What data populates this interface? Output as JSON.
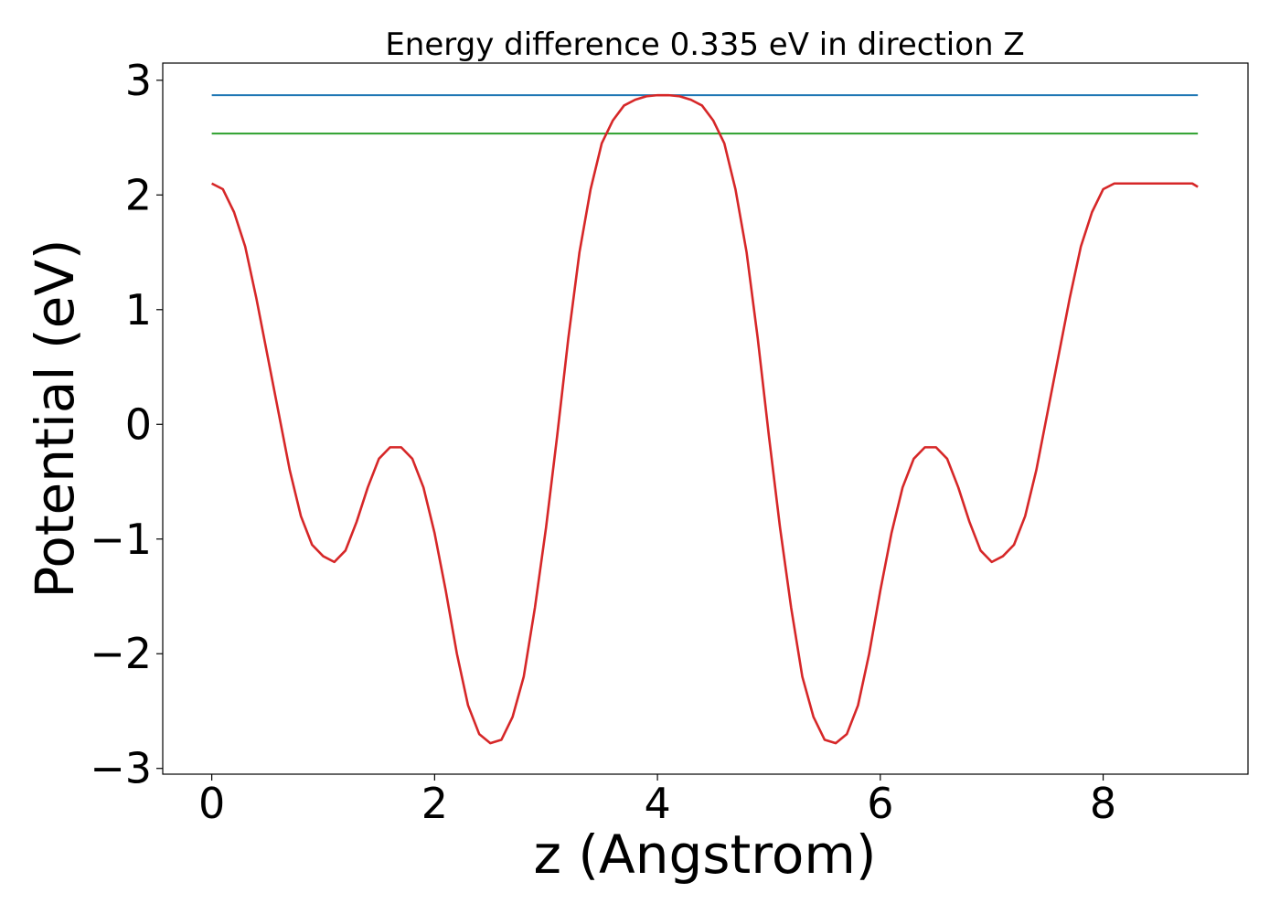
{
  "chart_data": {
    "type": "line",
    "title": "Energy difference 0.335 eV in direction Z",
    "xlabel": "z (Angstrom)",
    "ylabel": "Potential (eV)",
    "xlim": [
      -0.44,
      9.3
    ],
    "ylim": [
      -3.05,
      3.15
    ],
    "x_ticks": [
      0,
      2,
      4,
      6,
      8
    ],
    "y_ticks": [
      -3,
      -2,
      -1,
      0,
      1,
      2,
      3
    ],
    "x_tick_labels": [
      "0",
      "2",
      "4",
      "6",
      "8"
    ],
    "y_tick_labels": [
      "−3",
      "−2",
      "−1",
      "0",
      "1",
      "2",
      "3"
    ],
    "grid": false,
    "series": [
      {
        "color": "#d62728",
        "x": [
          0.0,
          0.1,
          0.2,
          0.3,
          0.4,
          0.5,
          0.6,
          0.7,
          0.8,
          0.9,
          1.0,
          1.1,
          1.2,
          1.3,
          1.4,
          1.5,
          1.6,
          1.7,
          1.8,
          1.9,
          2.0,
          2.1,
          2.2,
          2.3,
          2.4,
          2.5,
          2.6,
          2.7,
          2.8,
          2.9,
          3.0,
          3.1,
          3.2,
          3.3,
          3.4,
          3.5,
          3.6,
          3.7,
          3.8,
          3.9,
          4.0,
          4.1,
          4.2,
          4.3,
          4.4,
          4.5,
          4.6,
          4.7,
          4.8,
          4.9,
          5.0,
          5.1,
          5.2,
          5.3,
          5.4,
          5.5,
          5.6,
          5.7,
          5.8,
          5.9,
          6.0,
          6.1,
          6.2,
          6.3,
          6.4,
          6.5,
          6.6,
          6.7,
          6.8,
          6.9,
          7.0,
          7.1,
          7.2,
          7.3,
          7.4,
          7.5,
          7.6,
          7.7,
          7.8,
          7.9,
          8.0,
          8.1,
          8.2,
          8.3,
          8.4,
          8.5,
          8.6,
          8.7,
          8.8,
          8.85
        ],
        "y": [
          2.1,
          2.05,
          1.85,
          1.55,
          1.1,
          0.6,
          0.1,
          -0.4,
          -0.8,
          -1.05,
          -1.15,
          -1.2,
          -1.1,
          -0.85,
          -0.55,
          -0.3,
          -0.2,
          -0.2,
          -0.3,
          -0.55,
          -0.95,
          -1.45,
          -2.0,
          -2.45,
          -2.7,
          -2.78,
          -2.75,
          -2.55,
          -2.2,
          -1.6,
          -0.9,
          -0.1,
          0.75,
          1.5,
          2.05,
          2.45,
          2.65,
          2.78,
          2.83,
          2.86,
          2.87,
          2.87,
          2.86,
          2.83,
          2.78,
          2.65,
          2.45,
          2.05,
          1.5,
          0.75,
          -0.1,
          -0.9,
          -1.6,
          -2.2,
          -2.55,
          -2.75,
          -2.78,
          -2.7,
          -2.45,
          -2.0,
          -1.45,
          -0.95,
          -0.55,
          -0.3,
          -0.2,
          -0.2,
          -0.3,
          -0.55,
          -0.85,
          -1.1,
          -1.2,
          -1.15,
          -1.05,
          -0.8,
          -0.4,
          0.1,
          0.6,
          1.1,
          1.55,
          1.85,
          2.05,
          2.1,
          2.1,
          2.1,
          2.1,
          2.1,
          2.1,
          2.1,
          2.1,
          2.07
        ]
      },
      {
        "color": "#1f77b4",
        "x": [
          0.0,
          8.85
        ],
        "y": [
          2.87,
          2.87
        ]
      },
      {
        "color": "#2ca02c",
        "x": [
          0.0,
          8.85
        ],
        "y": [
          2.535,
          2.535
        ]
      }
    ]
  }
}
